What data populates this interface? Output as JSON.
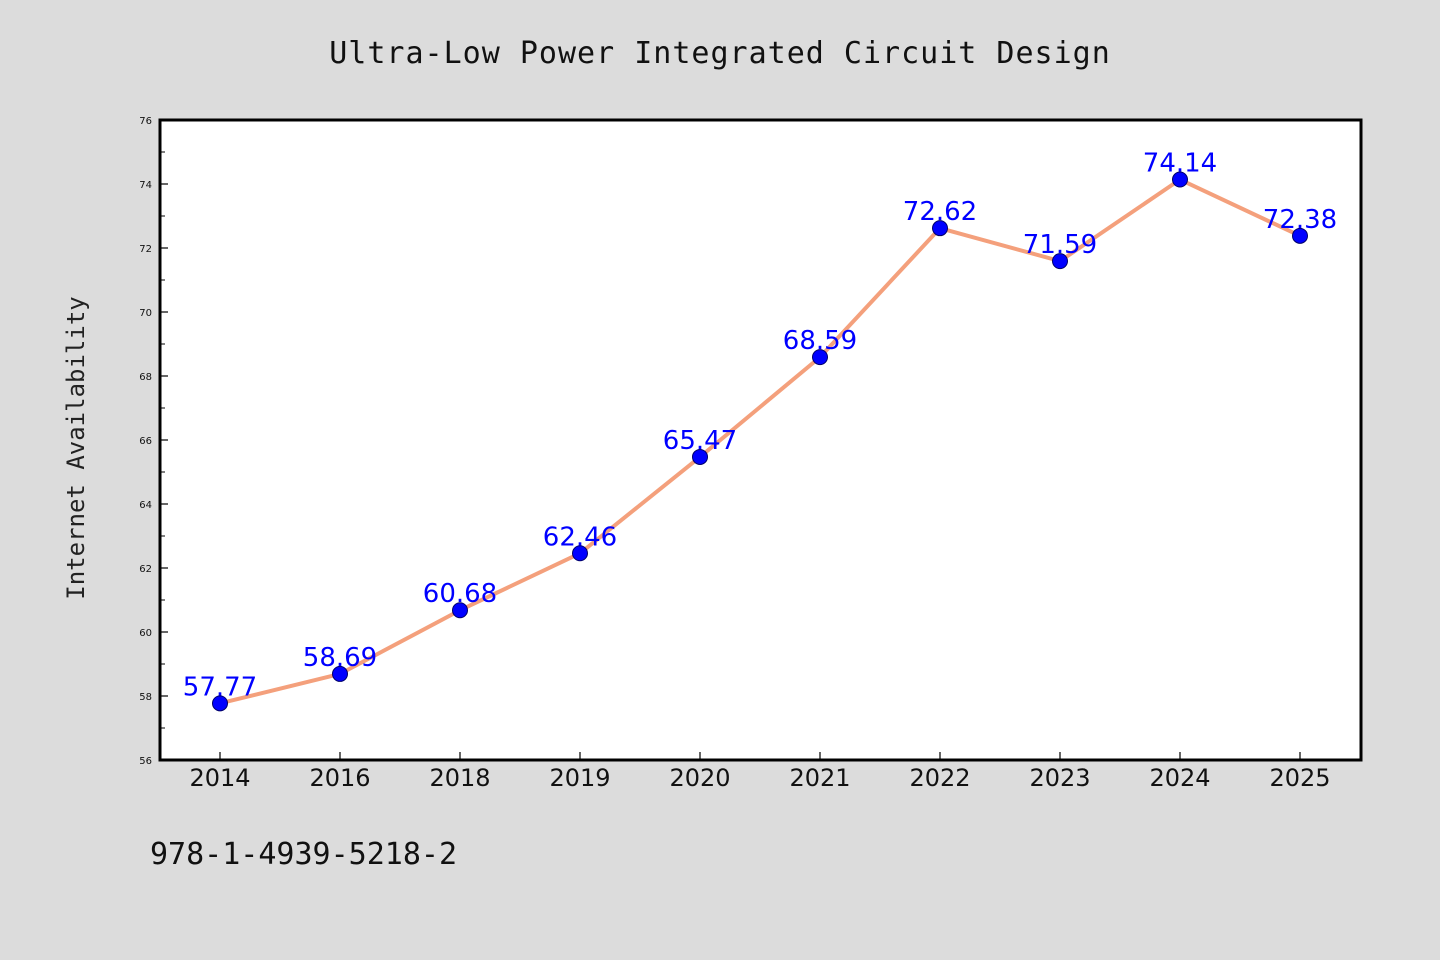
{
  "chart_data": {
    "type": "line",
    "title": "Ultra-Low Power Integrated Circuit Design",
    "xlabel": "",
    "ylabel": "Internet Availability",
    "categories": [
      "2014",
      "2016",
      "2018",
      "2019",
      "2020",
      "2021",
      "2022",
      "2023",
      "2024",
      "2025"
    ],
    "series": [
      {
        "values": [
          57.77,
          58.69,
          60.68,
          62.46,
          65.47,
          68.59,
          72.62,
          71.59,
          74.14,
          72.38
        ]
      }
    ],
    "data_labels": [
      "57.77",
      "58.69",
      "60.68",
      "62.46",
      "65.47",
      "68.59",
      "72.62",
      "71.59",
      "74.14",
      "72.38"
    ],
    "ylim": [
      56,
      76
    ],
    "yticks": [
      "56",
      "58",
      "60",
      "62",
      "64",
      "66",
      "68",
      "70",
      "72",
      "74",
      "76"
    ],
    "grid": false,
    "legend": "none",
    "colors": {
      "line": "#f4a07c",
      "marker": "#0000ff",
      "label": "#0000ff",
      "background": "#dcdcdc",
      "plot_background": "#ffffff"
    }
  },
  "footer": {
    "isbn": "978-1-4939-5218-2"
  }
}
